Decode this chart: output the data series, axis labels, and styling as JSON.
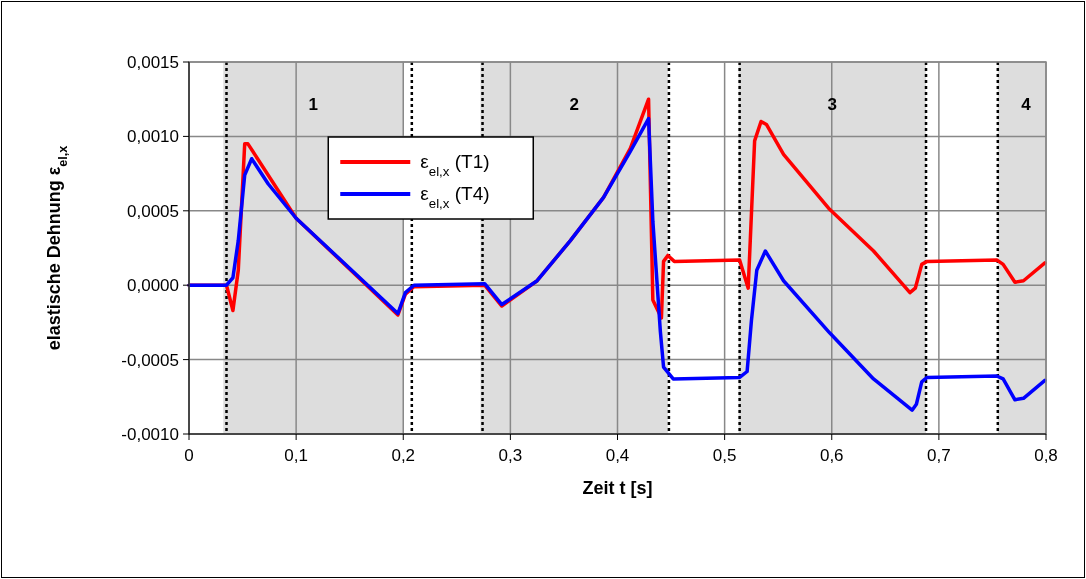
{
  "chart_data": {
    "type": "line",
    "xlabel": "Zeit t [s]",
    "ylabel": "elastische Dehnung ε$_{el,x}$",
    "xlim": [
      0,
      0.8
    ],
    "ylim": [
      -0.001,
      0.0015
    ],
    "xticks": [
      0,
      {
        "value": 0.1,
        "label": "0,1"
      },
      {
        "value": 0.2,
        "label": "0,2"
      },
      {
        "value": 0.3,
        "label": "0,3"
      },
      {
        "value": 0.4,
        "label": "0,4"
      },
      {
        "value": 0.5,
        "label": "0,5"
      },
      {
        "value": 0.6,
        "label": "0,6"
      },
      {
        "value": 0.7,
        "label": "0,7"
      },
      {
        "value": 0.8,
        "label": "0,8"
      }
    ],
    "yticks": [
      {
        "value": -0.001,
        "label": "-0,0010"
      },
      {
        "value": -0.0005,
        "label": "-0,0005"
      },
      {
        "value": 0,
        "label": "0,0000"
      },
      {
        "value": 0.0005,
        "label": "0,0005"
      },
      {
        "value": 0.001,
        "label": "0,0010"
      },
      {
        "value": 0.0015,
        "label": "0,0015"
      }
    ],
    "grid": true,
    "legend": "top left",
    "line_style": "solid",
    "marker": "none",
    "bands": [
      {
        "axis": "x",
        "from": 0.032,
        "to": 0.2,
        "label": "1",
        "color": "#dddddd"
      },
      {
        "axis": "x",
        "from": 0.272,
        "to": 0.447,
        "label": "2",
        "color": "#dddddd"
      },
      {
        "axis": "x",
        "from": 0.513,
        "to": 0.688,
        "label": "3",
        "color": "#dddddd"
      },
      {
        "axis": "x",
        "from": 0.755,
        "to": 0.8,
        "label": "4",
        "color": "#dddddd"
      }
    ],
    "ref_lines": [
      {
        "axis": "x",
        "value": 0.035,
        "color": "#000000",
        "line_style": "dotted"
      },
      {
        "axis": "x",
        "value": 0.208,
        "color": "#000000",
        "line_style": "dotted"
      },
      {
        "axis": "x",
        "value": 0.274,
        "color": "#000000",
        "line_style": "dotted"
      },
      {
        "axis": "x",
        "value": 0.448,
        "color": "#000000",
        "line_style": "dotted"
      },
      {
        "axis": "x",
        "value": 0.514,
        "color": "#000000",
        "line_style": "dotted"
      },
      {
        "axis": "x",
        "value": 0.688,
        "color": "#000000",
        "line_style": "dotted"
      },
      {
        "axis": "x",
        "value": 0.755,
        "color": "#000000",
        "line_style": "dotted"
      }
    ],
    "series": [
      {
        "name": "ε$_{el,x}$ (T1)",
        "color": "#ff0000",
        "x": [
          0,
          0.035,
          0.041,
          0.046,
          0.052,
          0.055,
          0.1,
          0.195,
          0.202,
          0.21,
          0.276,
          0.292,
          0.325,
          0.356,
          0.387,
          0.412,
          0.429,
          0.433,
          0.441,
          0.443,
          0.447,
          0.453,
          0.514,
          0.522,
          0.528,
          0.534,
          0.539,
          0.555,
          0.598,
          0.639,
          0.673,
          0.678,
          0.684,
          0.689,
          0.754,
          0.76,
          0.771,
          0.779,
          0.799
        ],
        "values": [
          0,
          0,
          -0.00017,
          0.0001,
          0.00095,
          0.00095,
          0.00045,
          -0.0002,
          -6e-05,
          -1e-05,
          0,
          -0.00014,
          3e-05,
          0.0003,
          0.00059,
          0.00092,
          0.00125,
          -0.0001,
          -0.00022,
          0.00016,
          0.0002,
          0.00016,
          0.00017,
          -2e-05,
          0.00097,
          0.0011,
          0.00108,
          0.00088,
          0.00051,
          0.00023,
          -5e-05,
          -2e-05,
          0.00014,
          0.00016,
          0.00017,
          0.00014,
          2e-05,
          3e-05,
          0.00015
        ]
      },
      {
        "name": "ε$_{el,x}$ (T4)",
        "color": "#0000ff",
        "x": [
          0,
          0.035,
          0.041,
          0.046,
          0.052,
          0.0585,
          0.074,
          0.1,
          0.195,
          0.202,
          0.21,
          0.276,
          0.292,
          0.325,
          0.356,
          0.387,
          0.412,
          0.429,
          0.433,
          0.44,
          0.443,
          0.452,
          0.514,
          0.521,
          0.525,
          0.53,
          0.538,
          0.555,
          0.598,
          0.639,
          0.675,
          0.679,
          0.684,
          0.689,
          0.754,
          0.76,
          0.771,
          0.779,
          0.799
        ],
        "values": [
          0,
          0,
          5e-05,
          0.0003,
          0.00074,
          0.00085,
          0.00068,
          0.00045,
          -0.00019,
          -5e-05,
          0,
          1e-05,
          -0.00013,
          3e-05,
          0.0003,
          0.00059,
          0.0009,
          0.00112,
          0.00043,
          -0.00031,
          -0.00055,
          -0.00063,
          -0.00062,
          -0.00058,
          -0.00024,
          0.0001,
          0.00023,
          3e-05,
          -0.00032,
          -0.00063,
          -0.00084,
          -0.0008,
          -0.00065,
          -0.00062,
          -0.00061,
          -0.00063,
          -0.00077,
          -0.00076,
          -0.00064
        ]
      }
    ]
  }
}
